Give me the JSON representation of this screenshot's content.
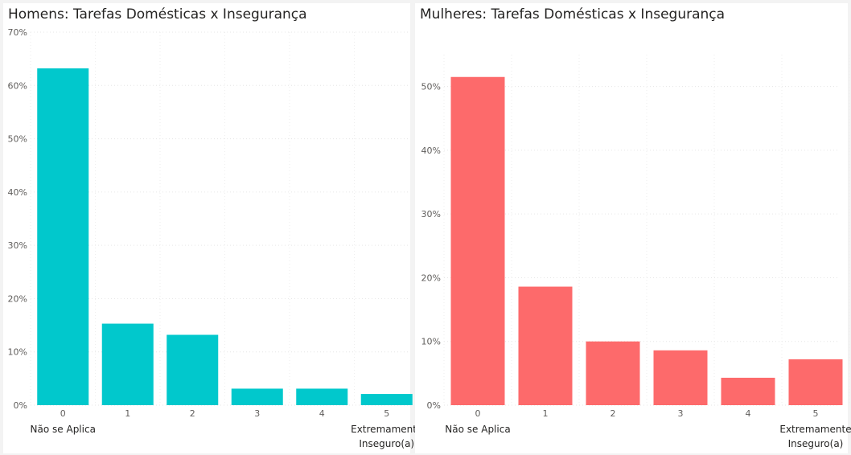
{
  "chart_data": [
    {
      "type": "bar",
      "title": "Homens: Tarefas Domésticas x Insegurança",
      "categories": [
        "0",
        "1",
        "2",
        "3",
        "4",
        "5"
      ],
      "values": [
        63.2,
        15.3,
        13.2,
        3.1,
        3.1,
        2.1
      ],
      "ylim": [
        0,
        70
      ],
      "yticks": [
        "0%",
        "10%",
        "20%",
        "30%",
        "40%",
        "50%",
        "60%",
        "70%"
      ],
      "scale_low_label": "Não se Aplica",
      "scale_high_label": [
        "Extremamente",
        "Inseguro(a)"
      ],
      "grid": true,
      "color": "#01C8CC"
    },
    {
      "type": "bar",
      "title": "Mulheres: Tarefas Domésticas x Insegurança",
      "categories": [
        "0",
        "1",
        "2",
        "3",
        "4",
        "5"
      ],
      "values": [
        51.5,
        18.6,
        10.0,
        8.6,
        4.3,
        7.2
      ],
      "ylim": [
        0,
        55
      ],
      "yticks": [
        "0%",
        "10%",
        "20%",
        "30%",
        "40%",
        "50%"
      ],
      "scale_low_label": "Não se Aplica",
      "scale_high_label": [
        "Extremamente",
        "Inseguro(a)"
      ],
      "grid": true,
      "color": "#FD6A6B"
    }
  ]
}
